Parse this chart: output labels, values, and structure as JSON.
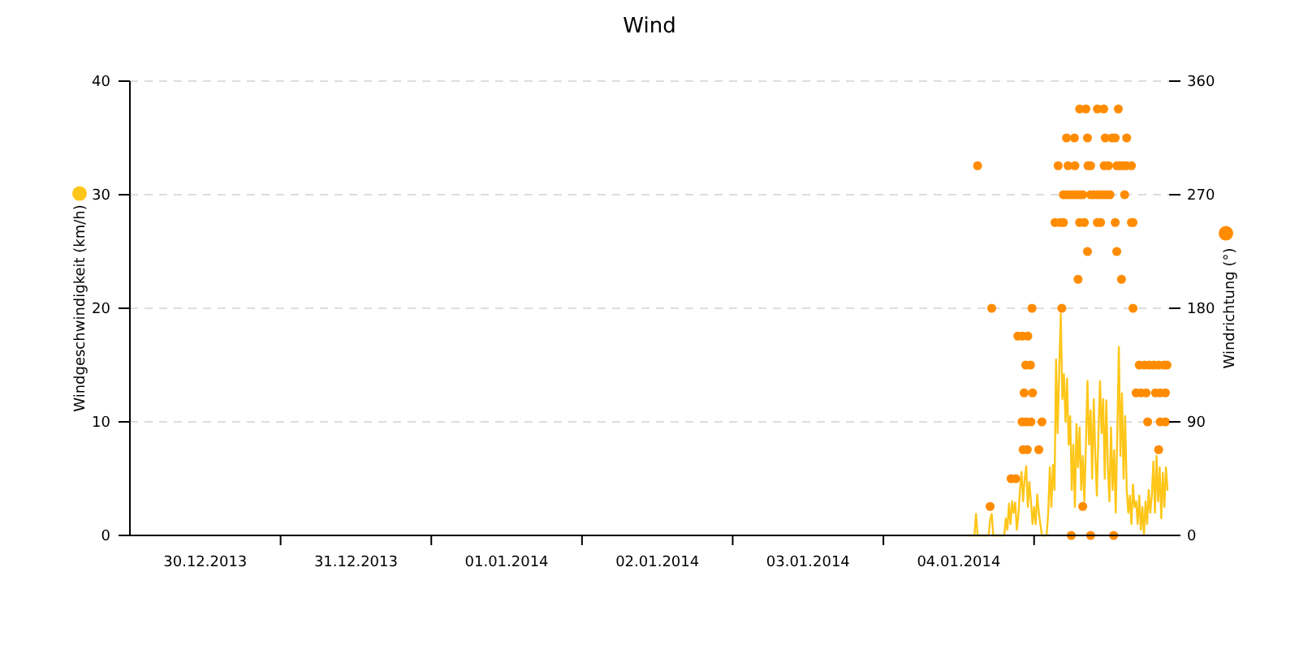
{
  "chart_data": {
    "type": "line",
    "title": "Wind",
    "ylabel": "Windgeschwindigkeit (km/h)",
    "y2label": "Windrichtung (°)",
    "xlim": [
      "2013-12-30T00:00",
      "2014-01-05T21:30"
    ],
    "xticks": [
      {
        "value": "2013-12-30T12:00",
        "label": "30.12.2013"
      },
      {
        "value": "2013-12-31T00:00",
        "label": null
      },
      {
        "value": "2013-12-31T12:00",
        "label": "31.12.2013"
      },
      {
        "value": "2014-01-01T00:00",
        "label": null
      },
      {
        "value": "2014-01-01T12:00",
        "label": "01.01.2014"
      },
      {
        "value": "2014-01-02T00:00",
        "label": null
      },
      {
        "value": "2014-01-02T12:00",
        "label": "02.01.2014"
      },
      {
        "value": "2014-01-03T00:00",
        "label": null
      },
      {
        "value": "2014-01-03T12:00",
        "label": "03.01.2014"
      },
      {
        "value": "2014-01-04T00:00",
        "label": null
      },
      {
        "value": "2014-01-04T12:00",
        "label": "04.01.2014"
      },
      {
        "value": "2014-01-05T00:00",
        "label": null
      }
    ],
    "ylim": [
      0,
      40
    ],
    "yticks": [
      0,
      10,
      20,
      30,
      40
    ],
    "y2lim": [
      0,
      360
    ],
    "y2ticks": [
      0,
      90,
      180,
      270,
      360
    ],
    "grid": "y",
    "series": [
      {
        "color": "#ffc61a",
        "x": [
          "2014-01-04T13:30",
          "2014-01-04T14:30",
          "2014-01-04T14:45",
          "2014-01-04T15:00",
          "2014-01-04T16:45",
          "2014-01-04T17:00",
          "2014-01-04T17:15",
          "2014-01-04T17:30",
          "2014-01-04T19:15",
          "2014-01-04T19:30",
          "2014-01-04T19:45",
          "2014-01-04T20:00",
          "2014-01-04T20:15",
          "2014-01-04T20:30",
          "2014-01-04T20:45",
          "2014-01-04T21:00",
          "2014-01-04T21:15",
          "2014-01-04T21:30",
          "2014-01-04T21:45",
          "2014-01-04T22:00",
          "2014-01-04T22:15",
          "2014-01-04T22:30",
          "2014-01-04T22:45",
          "2014-01-04T23:00",
          "2014-01-04T23:15",
          "2014-01-04T23:30",
          "2014-01-04T23:45",
          "2014-01-05T00:00",
          "2014-01-05T00:15",
          "2014-01-05T00:30",
          "2014-01-05T00:45",
          "2014-01-05T01:00",
          "2014-01-05T01:15",
          "2014-01-05T02:00",
          "2014-01-05T02:15",
          "2014-01-05T02:30",
          "2014-01-05T02:45",
          "2014-01-05T03:00",
          "2014-01-05T03:15",
          "2014-01-05T03:30",
          "2014-01-05T03:45",
          "2014-01-05T04:00",
          "2014-01-05T04:15",
          "2014-01-05T04:30",
          "2014-01-05T04:45",
          "2014-01-05T05:00",
          "2014-01-05T05:15",
          "2014-01-05T05:30",
          "2014-01-05T05:45",
          "2014-01-05T06:00",
          "2014-01-05T06:15",
          "2014-01-05T06:30",
          "2014-01-05T06:45",
          "2014-01-05T07:00",
          "2014-01-05T07:15",
          "2014-01-05T07:30",
          "2014-01-05T07:45",
          "2014-01-05T08:00",
          "2014-01-05T08:15",
          "2014-01-05T08:30",
          "2014-01-05T08:45",
          "2014-01-05T09:00",
          "2014-01-05T09:15",
          "2014-01-05T09:30",
          "2014-01-05T09:45",
          "2014-01-05T10:00",
          "2014-01-05T10:15",
          "2014-01-05T10:30",
          "2014-01-05T10:45",
          "2014-01-05T11:00",
          "2014-01-05T11:15",
          "2014-01-05T11:30",
          "2014-01-05T11:45",
          "2014-01-05T12:00",
          "2014-01-05T12:15",
          "2014-01-05T12:30",
          "2014-01-05T12:45",
          "2014-01-05T13:00",
          "2014-01-05T13:15",
          "2014-01-05T13:30",
          "2014-01-05T13:45",
          "2014-01-05T14:00",
          "2014-01-05T14:15",
          "2014-01-05T14:30",
          "2014-01-05T14:45",
          "2014-01-05T15:00",
          "2014-01-05T15:15",
          "2014-01-05T15:30",
          "2014-01-05T15:45",
          "2014-01-05T16:00",
          "2014-01-05T16:15",
          "2014-01-05T16:30",
          "2014-01-05T16:45",
          "2014-01-05T17:00",
          "2014-01-05T17:15",
          "2014-01-05T17:30",
          "2014-01-05T17:45",
          "2014-01-05T18:00",
          "2014-01-05T18:15",
          "2014-01-05T18:30",
          "2014-01-05T18:45",
          "2014-01-05T19:00",
          "2014-01-05T19:15",
          "2014-01-05T19:30",
          "2014-01-05T19:45",
          "2014-01-05T20:00",
          "2014-01-05T20:15",
          "2014-01-05T20:30",
          "2014-01-05T20:45",
          "2014-01-05T21:00",
          "2014-01-05T21:15"
        ],
        "values": [
          0,
          0,
          1.9,
          0,
          0,
          1.4,
          1.9,
          0,
          0,
          1.5,
          0.5,
          2.8,
          1.0,
          3.0,
          2.0,
          2.9,
          0.5,
          1.8,
          4.0,
          5.6,
          3.0,
          5.0,
          6.1,
          2.5,
          4.7,
          3.0,
          1.0,
          2.5,
          1.0,
          3.6,
          2.0,
          1.0,
          0,
          0,
          2.0,
          6.0,
          2.5,
          6.2,
          4.0,
          15.5,
          9.0,
          14.5,
          19.5,
          12.0,
          14.2,
          10.0,
          13.8,
          8.0,
          10.5,
          4.0,
          8.0,
          2.5,
          9.8,
          6.0,
          9.5,
          4.0,
          7.0,
          3.0,
          8.0,
          13.6,
          8.0,
          11.0,
          5.0,
          12.0,
          7.0,
          3.5,
          9.0,
          13.6,
          9.0,
          12.0,
          5.0,
          11.9,
          6.0,
          3.0,
          9.5,
          4.0,
          7.5,
          2.0,
          9.0,
          16.6,
          7.0,
          12.5,
          5.0,
          10.5,
          4.0,
          2.0,
          3.5,
          1.0,
          4.5,
          2.5,
          3.0,
          1.0,
          3.5,
          0.5,
          2.5,
          0,
          3.0,
          1.0,
          4.0,
          2.0,
          3.5,
          6.5,
          2.0,
          7.0,
          3.0,
          6.0,
          1.5,
          5.5,
          2.5,
          6.0,
          4.0
        ]
      },
      {
        "type": "scatter",
        "axis": "y2",
        "marker": "circle",
        "color": "#ff8c00",
        "x": [
          "2014-01-04T15:00",
          "2014-01-04T17:00",
          "2014-01-04T17:15",
          "2014-01-04T20:20",
          "2014-01-04T21:05",
          "2014-01-04T21:25",
          "2014-01-04T22:10",
          "2014-01-04T23:00",
          "2014-01-04T22:05",
          "2014-01-04T22:45",
          "2014-01-04T23:30",
          "2014-01-04T22:15",
          "2014-01-04T22:55",
          "2014-01-04T22:25",
          "2014-01-04T23:45",
          "2014-01-04T22:40",
          "2014-01-04T23:25",
          "2014-01-04T23:40",
          "2014-01-05T00:45",
          "2014-01-05T01:15",
          "2014-01-05T07:15",
          "2014-01-05T08:15",
          "2014-01-05T10:05",
          "2014-01-05T11:05",
          "2014-01-05T13:25",
          "2014-01-05T05:10",
          "2014-01-05T06:25",
          "2014-01-05T08:30",
          "2014-01-05T11:20",
          "2014-01-05T12:25",
          "2014-01-05T12:55",
          "2014-01-05T14:45",
          "2014-01-05T03:50",
          "2014-01-05T05:25",
          "2014-01-05T06:30",
          "2014-01-05T08:35",
          "2014-01-05T09:00",
          "2014-01-05T11:10",
          "2014-01-05T11:50",
          "2014-01-05T13:10",
          "2014-01-05T13:40",
          "2014-01-05T14:10",
          "2014-01-05T14:40",
          "2014-01-05T15:30",
          "2014-01-05T04:40",
          "2014-01-05T05:10",
          "2014-01-05T05:40",
          "2014-01-05T06:10",
          "2014-01-05T06:40",
          "2014-01-05T07:15",
          "2014-01-05T07:45",
          "2014-01-05T09:00",
          "2014-01-05T09:30",
          "2014-01-05T10:05",
          "2014-01-05T10:35",
          "2014-01-05T11:05",
          "2014-01-05T11:35",
          "2014-01-05T12:05",
          "2014-01-05T14:25",
          "2014-01-05T03:20",
          "2014-01-05T04:10",
          "2014-01-05T04:40",
          "2014-01-05T07:15",
          "2014-01-05T08:00",
          "2014-01-05T10:05",
          "2014-01-05T10:35",
          "2014-01-05T12:55",
          "2014-01-05T15:30",
          "2014-01-05T15:45",
          "2014-01-05T08:30",
          "2014-01-05T13:10",
          "2014-01-05T07:00",
          "2014-01-05T13:55",
          "2014-01-05T04:25",
          "2014-01-05T15:45",
          "2014-01-05T16:45",
          "2014-01-05T17:35",
          "2014-01-05T18:20",
          "2014-01-05T19:05",
          "2014-01-05T19:50",
          "2014-01-05T20:40",
          "2014-01-05T21:10",
          "2014-01-05T16:15",
          "2014-01-05T17:00",
          "2014-01-05T17:50",
          "2014-01-05T19:20",
          "2014-01-05T20:05",
          "2014-01-05T20:55",
          "2014-01-05T18:05",
          "2014-01-05T20:05",
          "2014-01-05T20:55",
          "2014-01-05T19:50",
          "2014-01-05T07:45",
          "2014-01-05T05:55",
          "2014-01-05T09:00",
          "2014-01-05T12:40"
        ],
        "values": [
          293,
          23,
          180,
          45,
          45,
          158,
          158,
          158,
          90,
          90,
          90,
          68,
          68,
          113,
          113,
          135,
          135,
          180,
          68,
          90,
          338,
          338,
          338,
          338,
          338,
          315,
          315,
          315,
          315,
          315,
          315,
          315,
          293,
          293,
          293,
          293,
          293,
          293,
          293,
          293,
          293,
          293,
          293,
          293,
          270,
          270,
          270,
          270,
          270,
          270,
          270,
          270,
          270,
          270,
          270,
          270,
          270,
          270,
          270,
          248,
          248,
          248,
          248,
          248,
          248,
          248,
          248,
          248,
          248,
          225,
          225,
          203,
          203,
          180,
          180,
          135,
          135,
          135,
          135,
          135,
          135,
          135,
          113,
          113,
          113,
          113,
          113,
          113,
          90,
          90,
          90,
          68,
          23,
          0,
          0,
          0
        ]
      }
    ]
  }
}
